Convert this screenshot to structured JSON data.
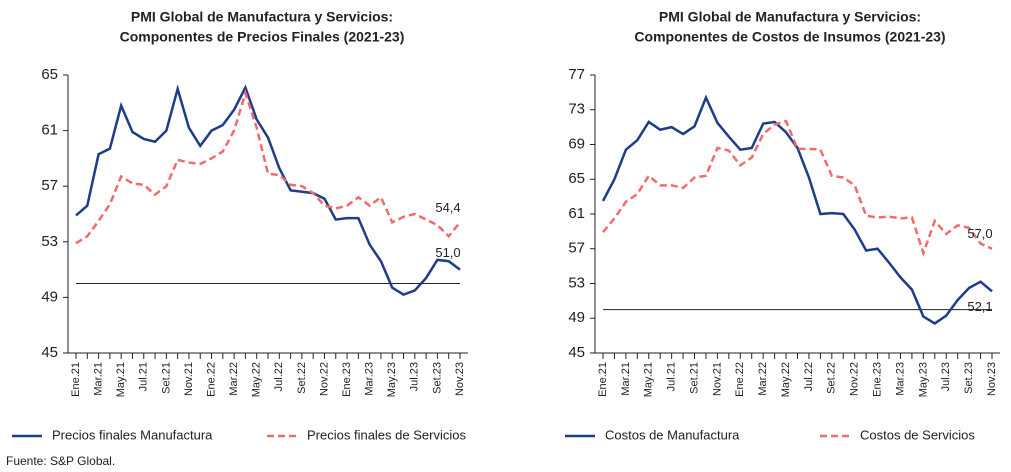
{
  "chart_data": [
    {
      "type": "line",
      "title": [
        "PMI Global de Manufactura y Servicios:",
        "Componentes de Precios Finales (2021-23)"
      ],
      "categories": [
        "Ene.21",
        null,
        "Mar.21",
        null,
        "May.21",
        null,
        "Jul.21",
        null,
        "Set.21",
        null,
        "Nov.21",
        null,
        "Ene.22",
        null,
        "Mar.22",
        null,
        "May.22",
        null,
        "Jul.22",
        null,
        "Set.22",
        null,
        "Nov.22",
        null,
        "Ene.23",
        null,
        "Mar.23",
        null,
        "May.23",
        null,
        "Jul.23",
        null,
        "Set.23",
        null,
        "Nov.23"
      ],
      "series": [
        {
          "name": "Precios finales Manufactura",
          "color": "#1f3c88",
          "dash": false,
          "values": [
            54.9,
            55.6,
            59.3,
            59.7,
            62.8,
            60.9,
            60.4,
            60.2,
            61.0,
            64.0,
            61.2,
            59.9,
            61.0,
            61.4,
            62.5,
            64.1,
            61.8,
            60.5,
            58.3,
            56.7,
            56.6,
            56.5,
            56.1,
            54.6,
            54.7,
            54.7,
            52.8,
            51.6,
            49.7,
            49.2,
            49.5,
            50.4,
            51.7,
            51.6,
            51.0
          ]
        },
        {
          "name": "Precios finales de Servicios",
          "color": "#f26b6b",
          "dash": true,
          "values": [
            52.9,
            53.4,
            54.5,
            55.7,
            57.7,
            57.2,
            57.1,
            56.4,
            57.0,
            58.9,
            58.7,
            58.6,
            59.0,
            59.5,
            61.0,
            63.7,
            61.2,
            57.9,
            57.8,
            57.1,
            57.0,
            56.5,
            55.6,
            55.4,
            55.6,
            56.2,
            55.6,
            56.2,
            54.4,
            54.8,
            55.0,
            54.6,
            54.2,
            53.4,
            54.4
          ]
        }
      ],
      "annotations": [
        "54,4",
        "51,0"
      ],
      "hline": 50,
      "ylim": [
        45,
        65
      ],
      "yticks": [
        45,
        49,
        53,
        57,
        61,
        65
      ]
    },
    {
      "type": "line",
      "title": [
        "PMI Global de Manufactura y Servicios:",
        "Componentes de Costos de Insumos (2021-23)"
      ],
      "categories": [
        "Ene.21",
        null,
        "Mar.21",
        null,
        "May.21",
        null,
        "Jul.21",
        null,
        "Set.21",
        null,
        "Nov.21",
        null,
        "Ene.22",
        null,
        "Mar.22",
        null,
        "May.22",
        null,
        "Jul.22",
        null,
        "Set.22",
        null,
        "Nov.22",
        null,
        "Ene.23",
        null,
        "Mar.23",
        null,
        "May.23",
        null,
        "Jul.23",
        null,
        "Set.23",
        null,
        "Nov.23"
      ],
      "series": [
        {
          "name": "Costos de Manufactura",
          "color": "#1f3c88",
          "dash": false,
          "values": [
            62.5,
            65.0,
            68.4,
            69.5,
            71.6,
            70.7,
            71.0,
            70.2,
            71.1,
            74.4,
            71.5,
            69.9,
            68.4,
            68.6,
            71.4,
            71.6,
            70.4,
            68.6,
            65.2,
            61.0,
            61.1,
            61.0,
            59.2,
            56.8,
            57.0,
            55.4,
            53.7,
            52.3,
            49.2,
            48.4,
            49.3,
            51.1,
            52.5,
            53.2,
            52.1
          ]
        },
        {
          "name": "Costos de Servicios",
          "color": "#f26b6b",
          "dash": true,
          "values": [
            58.9,
            60.5,
            62.4,
            63.3,
            65.4,
            64.3,
            64.3,
            64.0,
            65.2,
            65.4,
            68.6,
            68.3,
            66.6,
            67.5,
            70.2,
            71.3,
            71.7,
            68.5,
            68.5,
            68.4,
            65.4,
            65.2,
            64.3,
            60.8,
            60.6,
            60.7,
            60.5,
            60.6,
            56.5,
            60.2,
            58.7,
            59.7,
            59.4,
            57.6,
            57.0
          ]
        }
      ],
      "annotations": [
        "57,0",
        "52,1"
      ],
      "hline": 50,
      "ylim": [
        45,
        77
      ],
      "yticks": [
        45,
        49,
        53,
        57,
        61,
        65,
        69,
        73,
        77
      ]
    }
  ],
  "source": "Fuente: S&P Global."
}
